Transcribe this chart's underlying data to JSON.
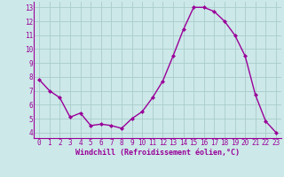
{
  "x": [
    0,
    1,
    2,
    3,
    4,
    5,
    6,
    7,
    8,
    9,
    10,
    11,
    12,
    13,
    14,
    15,
    16,
    17,
    18,
    19,
    20,
    21,
    22,
    23
  ],
  "y": [
    7.8,
    7.0,
    6.5,
    5.1,
    5.4,
    4.5,
    4.6,
    4.5,
    4.3,
    5.0,
    5.5,
    6.5,
    7.7,
    9.5,
    11.4,
    13.0,
    13.0,
    12.7,
    12.0,
    11.0,
    9.5,
    6.7,
    4.8,
    4.0
  ],
  "line_color": "#990099",
  "marker": "D",
  "marker_size": 2.0,
  "bg_color": "#cce8e8",
  "grid_color": "#aacccc",
  "xlabel": "Windchill (Refroidissement éolien,°C)",
  "xlabel_color": "#990099",
  "tick_color": "#990099",
  "ylabel_ticks": [
    4,
    5,
    6,
    7,
    8,
    9,
    10,
    11,
    12,
    13
  ],
  "xticks": [
    0,
    1,
    2,
    3,
    4,
    5,
    6,
    7,
    8,
    9,
    10,
    11,
    12,
    13,
    14,
    15,
    16,
    17,
    18,
    19,
    20,
    21,
    22,
    23
  ],
  "ylim": [
    3.6,
    13.4
  ],
  "xlim": [
    -0.5,
    23.5
  ],
  "tick_fontsize": 5.5,
  "xlabel_fontsize": 6.0,
  "linewidth": 1.0
}
